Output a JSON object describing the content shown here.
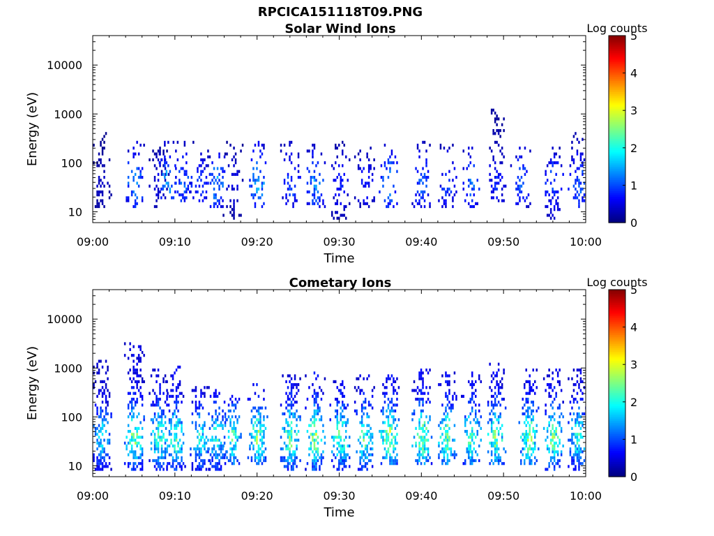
{
  "figure_title": "RPCICA151118T09.PNG",
  "chart_data": [
    {
      "type": "heatmap",
      "title": "Solar Wind Ions",
      "xlabel": "Time",
      "ylabel": "Energy (eV)",
      "x_ticks": [
        "09:00",
        "09:10",
        "09:20",
        "09:30",
        "09:40",
        "09:50",
        "10:00"
      ],
      "y_ticks": [
        "10",
        "100",
        "1000",
        "10000"
      ],
      "y_scale": "log",
      "ylim": [
        6,
        40000
      ],
      "xlim": [
        "09:00",
        "10:00"
      ],
      "colorbar": {
        "label": "Log counts",
        "ticks": [
          "0",
          "1",
          "2",
          "3",
          "4",
          "5"
        ],
        "range": [
          0,
          5
        ],
        "colormap": "jet"
      },
      "bursts": [
        {
          "t": "09:01",
          "e_min": 12,
          "e_max": 450,
          "peak": 0.4
        },
        {
          "t": "09:05",
          "e_min": 12,
          "e_max": 280,
          "peak": 1.6
        },
        {
          "t": "09:08",
          "e_min": 12,
          "e_max": 220,
          "peak": 0.6
        },
        {
          "t": "09:09",
          "e_min": 18,
          "e_max": 300,
          "peak": 1.6
        },
        {
          "t": "09:11",
          "e_min": 15,
          "e_max": 300,
          "peak": 1.3
        },
        {
          "t": "09:13",
          "e_min": 15,
          "e_max": 180,
          "peak": 1.0
        },
        {
          "t": "09:15",
          "e_min": 12,
          "e_max": 160,
          "peak": 1.6
        },
        {
          "t": "09:17",
          "e_min": 7,
          "e_max": 280,
          "peak": 0.6
        },
        {
          "t": "09:20",
          "e_min": 12,
          "e_max": 280,
          "peak": 1.8
        },
        {
          "t": "09:24",
          "e_min": 12,
          "e_max": 300,
          "peak": 1.2
        },
        {
          "t": "09:27",
          "e_min": 12,
          "e_max": 250,
          "peak": 1.5
        },
        {
          "t": "09:30",
          "e_min": 7,
          "e_max": 300,
          "peak": 0.9
        },
        {
          "t": "09:33",
          "e_min": 12,
          "e_max": 250,
          "peak": 0.8
        },
        {
          "t": "09:36",
          "e_min": 12,
          "e_max": 250,
          "peak": 1.5
        },
        {
          "t": "09:40",
          "e_min": 12,
          "e_max": 300,
          "peak": 1.3
        },
        {
          "t": "09:43",
          "e_min": 12,
          "e_max": 250,
          "peak": 1.1
        },
        {
          "t": "09:46",
          "e_min": 12,
          "e_max": 280,
          "peak": 1.3
        },
        {
          "t": "09:49",
          "e_min": 15,
          "e_max": 1200,
          "peak": 0.9
        },
        {
          "t": "09:52",
          "e_min": 12,
          "e_max": 300,
          "peak": 1.3
        },
        {
          "t": "09:56",
          "e_min": 7,
          "e_max": 300,
          "peak": 1.2
        },
        {
          "t": "09:59",
          "e_min": 12,
          "e_max": 450,
          "peak": 1.3
        }
      ]
    },
    {
      "type": "heatmap",
      "title": "Cometary Ions",
      "xlabel": "Time",
      "ylabel": "Energy (eV)",
      "x_ticks": [
        "09:00",
        "09:10",
        "09:20",
        "09:30",
        "09:40",
        "09:50",
        "10:00"
      ],
      "y_ticks": [
        "10",
        "100",
        "1000",
        "10000"
      ],
      "y_scale": "log",
      "ylim": [
        6,
        40000
      ],
      "xlim": [
        "09:00",
        "10:00"
      ],
      "colorbar": {
        "label": "Log counts",
        "ticks": [
          "0",
          "1",
          "2",
          "3",
          "4",
          "5"
        ],
        "range": [
          0,
          5
        ],
        "colormap": "jet"
      },
      "bursts": [
        {
          "t": "09:01",
          "e_min": 8,
          "e_max": 1500,
          "peak": 2.0
        },
        {
          "t": "09:05",
          "e_min": 8,
          "e_max": 3500,
          "peak": 2.8
        },
        {
          "t": "09:08",
          "e_min": 8,
          "e_max": 1000,
          "peak": 2.5
        },
        {
          "t": "09:10",
          "e_min": 8,
          "e_max": 1200,
          "peak": 2.6
        },
        {
          "t": "09:13",
          "e_min": 8,
          "e_max": 500,
          "peak": 2.2
        },
        {
          "t": "09:15",
          "e_min": 8,
          "e_max": 400,
          "peak": 2.3
        },
        {
          "t": "09:17",
          "e_min": 10,
          "e_max": 300,
          "peak": 2.5
        },
        {
          "t": "09:20",
          "e_min": 10,
          "e_max": 500,
          "peak": 2.8
        },
        {
          "t": "09:24",
          "e_min": 8,
          "e_max": 700,
          "peak": 2.8
        },
        {
          "t": "09:27",
          "e_min": 8,
          "e_max": 900,
          "peak": 2.9
        },
        {
          "t": "09:30",
          "e_min": 8,
          "e_max": 600,
          "peak": 2.7
        },
        {
          "t": "09:33",
          "e_min": 8,
          "e_max": 700,
          "peak": 2.6
        },
        {
          "t": "09:36",
          "e_min": 10,
          "e_max": 900,
          "peak": 3.0
        },
        {
          "t": "09:40",
          "e_min": 10,
          "e_max": 1000,
          "peak": 3.0
        },
        {
          "t": "09:43",
          "e_min": 10,
          "e_max": 900,
          "peak": 2.8
        },
        {
          "t": "09:46",
          "e_min": 10,
          "e_max": 900,
          "peak": 2.7
        },
        {
          "t": "09:49",
          "e_min": 10,
          "e_max": 1300,
          "peak": 2.8
        },
        {
          "t": "09:53",
          "e_min": 10,
          "e_max": 1000,
          "peak": 2.9
        },
        {
          "t": "09:56",
          "e_min": 8,
          "e_max": 1000,
          "peak": 2.8
        },
        {
          "t": "09:59",
          "e_min": 8,
          "e_max": 1000,
          "peak": 2.4
        }
      ]
    }
  ]
}
